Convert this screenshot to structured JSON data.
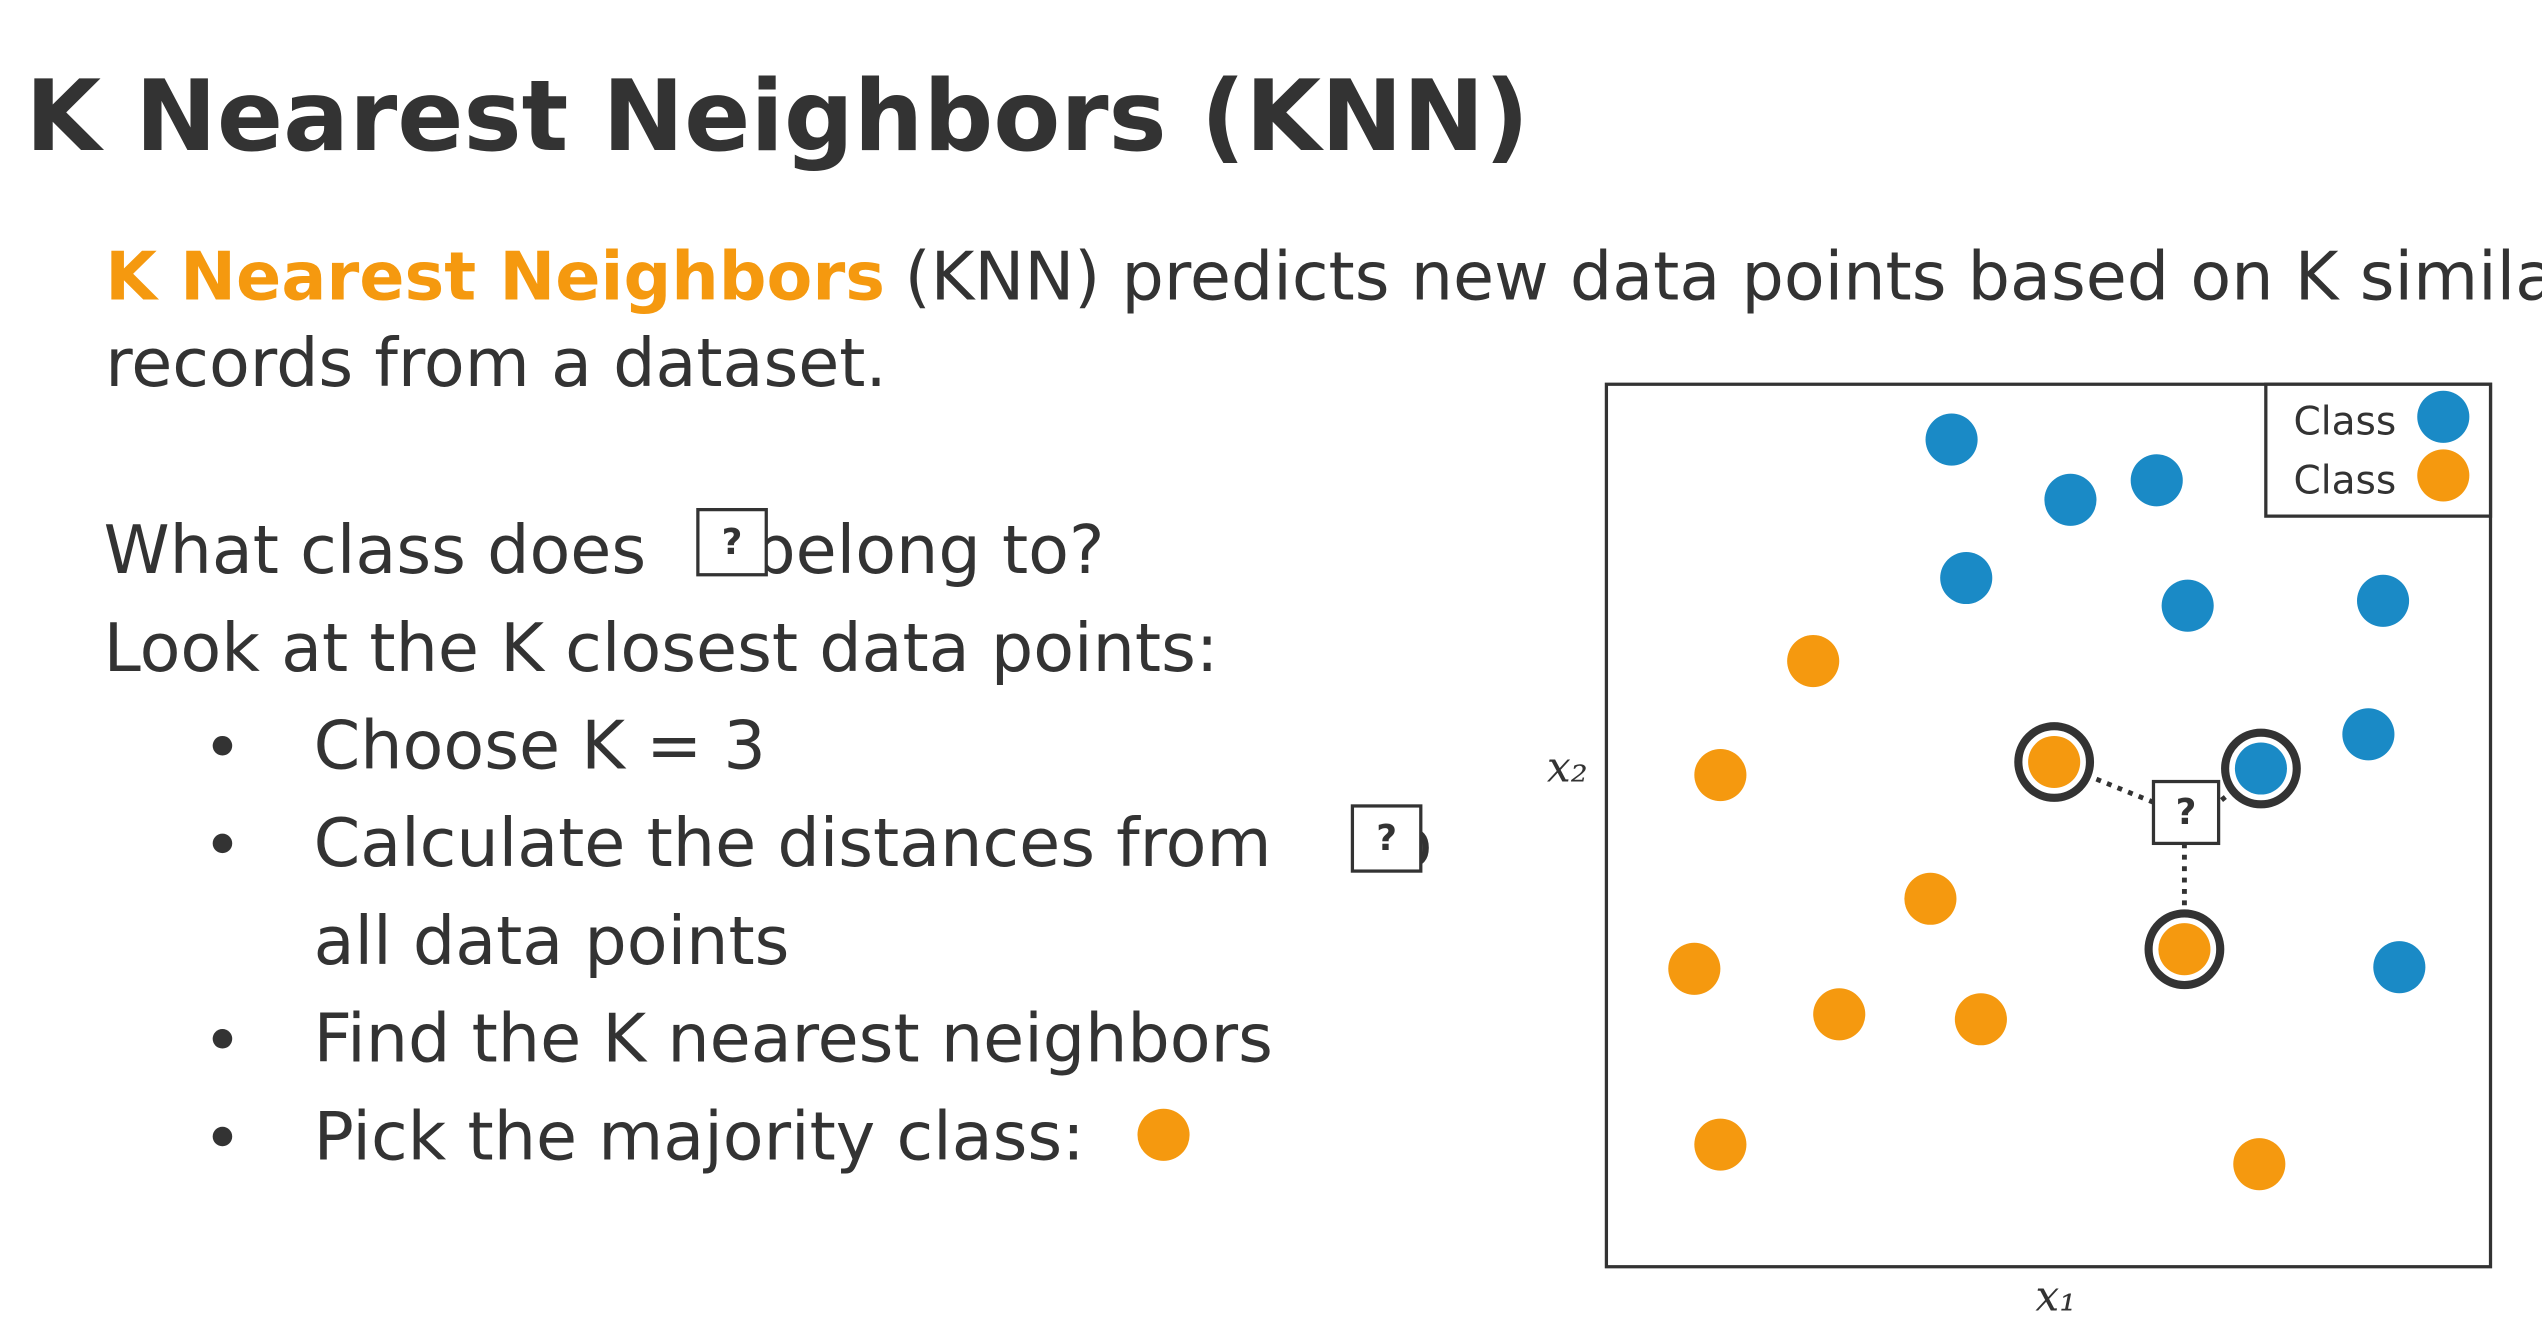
{
  "title": "K Nearest Neighbors (KNN)",
  "intro": {
    "highlight": "K Nearest Neighbors",
    "line1": "(KNN) predicts new data points based on K similar",
    "line2": "records from a dataset."
  },
  "question": {
    "before": "What class does",
    "box": "?",
    "after": "belong to?"
  },
  "steps_intro": "Look at the K closest data points:",
  "bullets": {
    "choose": "Choose K = 3",
    "calculate": "Calculate the distances from",
    "calculate_box": "?",
    "calculate_to": "to",
    "calculate_line2": "all data points",
    "find": "Find the K nearest neighbors",
    "pick": "Pick the majority class:"
  },
  "plot": {
    "x_label": "x₁",
    "y_label": "x₂",
    "query": "?",
    "legend": [
      "Class",
      "Class"
    ]
  }
}
